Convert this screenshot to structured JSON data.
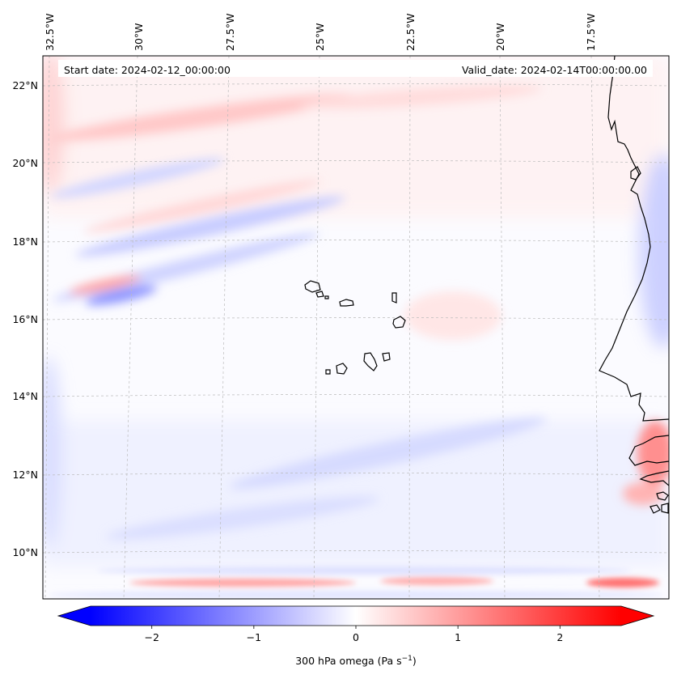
{
  "map": {
    "header": {
      "start_date": "Start date: 2024-02-12_00:00:00",
      "valid_date": "Valid_date: 2024-02-14T00:00:00.00"
    },
    "lon_labels": [
      "32.5°W",
      "30°W",
      "27.5°W",
      "25°W",
      "22.5°W",
      "20°W",
      "17.5°W"
    ],
    "lat_labels": [
      "22°N",
      "20°N",
      "18°N",
      "16°N",
      "14°N",
      "12°N",
      "10°N"
    ],
    "colorbar": {
      "label": "300 hPa omega (Pa s",
      "label_exponent": "−1",
      "label_close": ")",
      "ticks": [
        "−2",
        "−1",
        "0",
        "1",
        "2"
      ],
      "tick_values": [
        -2,
        -1,
        0,
        1,
        2
      ],
      "range": [
        -2.6,
        2.6
      ],
      "colors": {
        "negative": "#0000ff",
        "zero": "#ffffff",
        "positive": "#ff0000"
      }
    },
    "colors": {
      "coast": "#000000",
      "grid": "#bbbbbb"
    }
  },
  "chart_data": {
    "type": "heatmap",
    "variable": "300 hPa omega",
    "units": "Pa s^-1",
    "title": "",
    "start_date": "2024-02-12_00:00:00",
    "valid_date": "2024-02-14T00:00:00.00",
    "colorbar_range": [
      -2.6,
      2.6
    ],
    "lat_range": [
      8.8,
      22.7
    ],
    "lon_range": [
      -33.0,
      -15.5
    ],
    "features": [
      {
        "name": "red band near 21.5°N",
        "value": 0.8
      },
      {
        "name": "blue band near 16.5°N",
        "value": -1.2
      },
      {
        "name": "red band near 16.9°N",
        "value": 1.0
      },
      {
        "name": "red band near 9.2°N",
        "value": 1.4
      },
      {
        "name": "red area near Gambia coast",
        "value": 1.3
      }
    ]
  }
}
